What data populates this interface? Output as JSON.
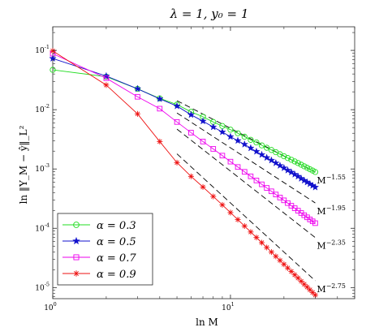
{
  "chart_data": {
    "type": "line",
    "title": "λ = 1, y₀ = 1",
    "xlabel": "ln M",
    "ylabel": "ln ‖Y_M − ŷ‖_L²",
    "xscale": "log",
    "yscale": "log",
    "xlim": [
      1,
      50
    ],
    "ylim": [
      6.5e-06,
      0.25
    ],
    "xticks": [
      {
        "value": 1,
        "base": "10",
        "exp": "0"
      },
      {
        "value": 10,
        "base": "10",
        "exp": "1"
      }
    ],
    "yticks": [
      {
        "value": 1e-05,
        "base": "10",
        "exp": "-5"
      },
      {
        "value": 0.0001,
        "base": "10",
        "exp": "-4"
      },
      {
        "value": 0.001,
        "base": "10",
        "exp": "-3"
      },
      {
        "value": 0.01,
        "base": "10",
        "exp": "-2"
      },
      {
        "value": 0.1,
        "base": "10",
        "exp": "-1"
      }
    ],
    "grid": false,
    "legend_position": "bottom-left",
    "x": [
      1,
      2,
      3,
      4,
      5,
      6,
      7,
      8,
      9,
      10,
      11,
      12,
      13,
      14,
      15,
      16,
      17,
      18,
      19,
      20,
      21,
      22,
      23,
      24,
      25,
      26,
      27,
      28,
      29,
      30
    ],
    "series": [
      {
        "name": "α = 0.3",
        "color": "#22dd22",
        "marker": "circle",
        "values": [
          0.047,
          0.036,
          0.0225,
          0.0155,
          0.0122,
          0.0092,
          0.0076,
          0.0062,
          0.0053,
          0.0046,
          0.004,
          0.0035,
          0.0031,
          0.0028,
          0.0025,
          0.00228,
          0.00209,
          0.00192,
          0.00177,
          0.00164,
          0.00153,
          0.00143,
          0.00134,
          0.00126,
          0.00118,
          0.00111,
          0.00105,
          0.00099,
          0.00094,
          0.00089
        ]
      },
      {
        "name": "α = 0.5",
        "color": "#1111cc",
        "marker": "star",
        "values": [
          0.073,
          0.037,
          0.0225,
          0.0152,
          0.0115,
          0.0082,
          0.0064,
          0.0051,
          0.0042,
          0.0035,
          0.003,
          0.0026,
          0.00225,
          0.00197,
          0.00174,
          0.00155,
          0.0014,
          0.00126,
          0.00114,
          0.00104,
          0.00095,
          0.00088,
          0.00081,
          0.00075,
          0.00069,
          0.00064,
          0.000598,
          0.000559,
          0.000524,
          0.000492
        ]
      },
      {
        "name": "α = 0.7",
        "color": "#ee00ee",
        "marker": "square",
        "values": [
          0.088,
          0.034,
          0.0165,
          0.0104,
          0.0062,
          0.0041,
          0.0029,
          0.00218,
          0.00168,
          0.00133,
          0.00108,
          0.000895,
          0.000752,
          0.00064,
          0.000551,
          0.000479,
          0.00042,
          0.000371,
          0.00033,
          0.000296,
          0.000266,
          0.00024,
          0.000218,
          0.000198,
          0.000181,
          0.000166,
          0.000153,
          0.000141,
          0.000131,
          0.000122
        ]
      },
      {
        "name": "α = 0.9",
        "color": "#ee1111",
        "marker": "asterisk",
        "values": [
          0.098,
          0.026,
          0.0085,
          0.0029,
          0.00128,
          0.00075,
          0.000497,
          0.000344,
          0.000248,
          0.000184,
          0.00014,
          0.000109,
          8.66e-05,
          6.99e-05,
          5.72e-05,
          4.74e-05,
          3.97e-05,
          3.36e-05,
          2.87e-05,
          2.47e-05,
          2.14e-05,
          1.87e-05,
          1.64e-05,
          1.45e-05,
          1.28e-05,
          1.14e-05,
          1.02e-05,
          9.18e-06,
          8.27e-06,
          7.47e-06
        ]
      }
    ],
    "reference_lines": [
      {
        "label_base": "M",
        "label_exp": "−1.55",
        "slope": -1.55,
        "x_from": 5,
        "x_to": 30,
        "y_at_from": 0.0142
      },
      {
        "label_base": "M",
        "label_exp": "−1.95",
        "slope": -1.95,
        "x_from": 5,
        "x_to": 30,
        "y_at_from": 0.0088
      },
      {
        "label_base": "M",
        "label_exp": "−2.35",
        "slope": -2.35,
        "x_from": 5,
        "x_to": 30,
        "y_at_from": 0.0047
      },
      {
        "label_base": "M",
        "label_exp": "−2.75",
        "slope": -2.75,
        "x_from": 5,
        "x_to": 30,
        "y_at_from": 0.0018
      }
    ]
  }
}
